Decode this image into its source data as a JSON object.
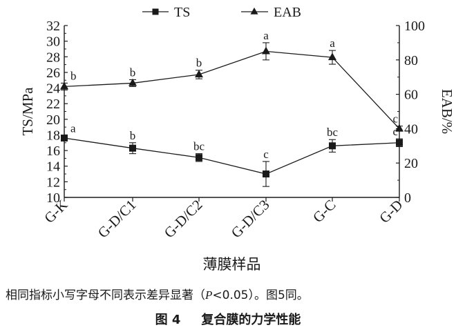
{
  "chart_data": {
    "type": "line",
    "categories": [
      "G-K",
      "G-D/C1",
      "G-D/C2",
      "G-D/C3",
      "G-C",
      "G-D"
    ],
    "xlabel": "薄膜样品",
    "ylabel_left": "TS/MPa",
    "ylabel_right": "EAB/%",
    "ylim_left": [
      10,
      32
    ],
    "yticks_left": [
      10,
      12,
      14,
      16,
      18,
      20,
      22,
      24,
      26,
      28,
      30,
      32
    ],
    "ylim_right": [
      0,
      100
    ],
    "yticks_right": [
      0,
      20,
      40,
      60,
      80,
      100
    ],
    "grid": false,
    "legend": "top",
    "series": [
      {
        "name": "TS",
        "axis": "left",
        "marker": "square",
        "values": [
          17.6,
          16.3,
          15.1,
          13.0,
          16.6,
          17.0
        ],
        "errors": [
          0.3,
          0.7,
          0.5,
          1.6,
          0.8,
          0.5
        ],
        "labels": [
          "a",
          "b",
          "bc",
          "c",
          "bc",
          "c"
        ]
      },
      {
        "name": "EAB",
        "axis": "right",
        "marker": "triangle",
        "values": [
          64.5,
          66.5,
          71.5,
          85.0,
          81.5,
          40.0
        ],
        "errors": [
          2.0,
          2.0,
          2.5,
          5.0,
          4.0,
          1.5
        ],
        "labels": [
          "b",
          "b",
          "b",
          "a",
          "a",
          "c"
        ]
      }
    ]
  },
  "note": {
    "before": "相同指标小写字母不同表示差异显著（",
    "p": "P",
    "after": "<0.05）。图5同。"
  },
  "caption": {
    "number": "图 4",
    "title": "复合膜的力学性能"
  }
}
